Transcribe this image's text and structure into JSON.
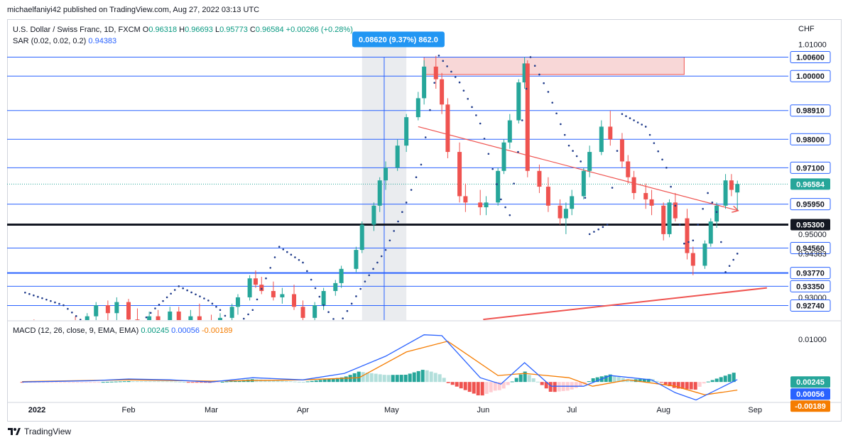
{
  "publisher": "michaelfaniyi42 published on TradingView.com, Aug 27, 2022 03:13 UTC",
  "footer_brand": "TradingView",
  "legend": {
    "symbol": "U.S. Dollar / Swiss Franc, 1D, FXCM",
    "o_label": "O",
    "o": "0.96318",
    "h_label": "H",
    "h": "0.96693",
    "l_label": "L",
    "l": "0.95773",
    "c_label": "C",
    "c": "0.96584",
    "change": "+0.00266 (+0.28%)",
    "sar_label": "SAR (0.02, 0.02, 0.2)",
    "sar_value": "0.94383",
    "macd_label": "MACD (12, 26, close, 9, EMA, EMA)",
    "macd_hist": "0.00245",
    "macd_line": "0.00056",
    "macd_signal": "-0.00189"
  },
  "currency": "CHF",
  "measure_label": "0.08620 (9.37%) 862.0",
  "colors": {
    "up": "#26a69a",
    "down": "#ef5350",
    "level_line": "#2962ff",
    "support_line": "#131722",
    "resistance_zone": "#f8d7d7",
    "sar": "#1e3a8a",
    "macd": "#2962ff",
    "signal": "#f57c00"
  },
  "price_axis": {
    "ticks": [
      "1.01000",
      "0.95000",
      "0.93000"
    ],
    "levels": [
      "1.00600",
      "1.00000",
      "0.98910",
      "0.98000",
      "0.97100",
      "0.95950",
      "0.94560",
      "0.93770",
      "0.93350",
      "0.92740"
    ],
    "support": "0.95300",
    "last_price": "0.96584",
    "sar_badge": "0.94383"
  },
  "macd_axis": {
    "tick": "0.01000",
    "hist_badge": "0.00245",
    "macd_badge": "0.00056",
    "signal_badge": "-0.00189"
  },
  "time_axis": [
    "2022",
    "Feb",
    "Mar",
    "Apr",
    "May",
    "Jun",
    "Jul",
    "Aug",
    "Sep"
  ],
  "chart_data": {
    "type": "candlestick",
    "title": "U.S. Dollar / Swiss Franc, 1D, FXCM",
    "y_unit": "CHF",
    "ylim": [
      0.9228,
      1.0106
    ],
    "horizontal_levels": [
      1.006,
      1.0,
      0.9891,
      0.98,
      0.971,
      0.9595,
      0.9456,
      0.9377,
      0.9335,
      0.9274
    ],
    "support_level": 0.953,
    "resistance_zone": {
      "from": "2022-05-12",
      "to": "2022-08-08",
      "low": 1.0005,
      "high": 1.006
    },
    "measure": {
      "from": "2022-04-21",
      "to": "2022-05-06",
      "change": 0.0862,
      "percent": 9.37,
      "ticks": 862.0
    },
    "trendlines": [
      {
        "from": [
          "2022-05-10",
          0.984
        ],
        "to": [
          "2022-08-26",
          0.9575
        ]
      },
      {
        "from": [
          "2022-06-01",
          0.923
        ],
        "to": [
          "2022-09-05",
          0.933
        ]
      }
    ],
    "candles": [
      [
        "2021-12-27",
        0.918,
        0.9215,
        0.9165,
        0.92
      ],
      [
        "2021-12-31",
        0.92,
        0.923,
        0.917,
        0.919
      ],
      [
        "2022-01-07",
        0.919,
        0.9225,
        0.916,
        0.921
      ],
      [
        "2022-01-14",
        0.921,
        0.924,
        0.915,
        0.9165
      ],
      [
        "2022-01-18",
        0.9165,
        0.925,
        0.916,
        0.924
      ],
      [
        "2022-01-21",
        0.924,
        0.9285,
        0.919,
        0.9275
      ],
      [
        "2022-01-25",
        0.9275,
        0.929,
        0.9225,
        0.925
      ],
      [
        "2022-01-28",
        0.925,
        0.93,
        0.9215,
        0.9285
      ],
      [
        "2022-02-01",
        0.9285,
        0.9295,
        0.92,
        0.923
      ],
      [
        "2022-02-04",
        0.923,
        0.9265,
        0.918,
        0.921
      ],
      [
        "2022-02-08",
        0.921,
        0.9255,
        0.9195,
        0.924
      ],
      [
        "2022-02-11",
        0.924,
        0.926,
        0.92,
        0.9215
      ],
      [
        "2022-02-15",
        0.9215,
        0.927,
        0.9205,
        0.9255
      ],
      [
        "2022-02-18",
        0.9255,
        0.927,
        0.9205,
        0.9225
      ],
      [
        "2022-02-22",
        0.9225,
        0.926,
        0.9195,
        0.924
      ],
      [
        "2022-02-25",
        0.924,
        0.928,
        0.9195,
        0.921
      ],
      [
        "2022-03-01",
        0.921,
        0.9245,
        0.915,
        0.918
      ],
      [
        "2022-03-04",
        0.918,
        0.925,
        0.9165,
        0.9235
      ],
      [
        "2022-03-08",
        0.9235,
        0.928,
        0.922,
        0.927
      ],
      [
        "2022-03-10",
        0.927,
        0.931,
        0.9245,
        0.93
      ],
      [
        "2022-03-14",
        0.93,
        0.937,
        0.929,
        0.936
      ],
      [
        "2022-03-16",
        0.936,
        0.9385,
        0.933,
        0.934
      ],
      [
        "2022-03-18",
        0.934,
        0.9365,
        0.931,
        0.932
      ],
      [
        "2022-03-22",
        0.932,
        0.935,
        0.929,
        0.93
      ],
      [
        "2022-03-25",
        0.93,
        0.933,
        0.928,
        0.931
      ],
      [
        "2022-03-29",
        0.931,
        0.934,
        0.926,
        0.927
      ],
      [
        "2022-04-01",
        0.927,
        0.929,
        0.9225,
        0.9235
      ],
      [
        "2022-04-05",
        0.9235,
        0.9285,
        0.9225,
        0.9275
      ],
      [
        "2022-04-08",
        0.9275,
        0.933,
        0.926,
        0.932
      ],
      [
        "2022-04-12",
        0.932,
        0.9355,
        0.9305,
        0.9345
      ],
      [
        "2022-04-14",
        0.9345,
        0.94,
        0.933,
        0.939
      ],
      [
        "2022-04-19",
        0.939,
        0.946,
        0.938,
        0.945
      ],
      [
        "2022-04-21",
        0.945,
        0.954,
        0.944,
        0.953
      ],
      [
        "2022-04-25",
        0.953,
        0.96,
        0.951,
        0.959
      ],
      [
        "2022-04-27",
        0.959,
        0.968,
        0.957,
        0.967
      ],
      [
        "2022-04-29",
        0.967,
        0.973,
        0.964,
        0.971
      ],
      [
        "2022-05-03",
        0.971,
        0.98,
        0.97,
        0.978
      ],
      [
        "2022-05-06",
        0.978,
        0.988,
        0.976,
        0.987
      ],
      [
        "2022-05-10",
        0.987,
        0.995,
        0.986,
        0.993
      ],
      [
        "2022-05-12",
        0.993,
        1.005,
        0.991,
        1.003
      ],
      [
        "2022-05-16",
        1.003,
        1.0064,
        0.996,
        0.999
      ],
      [
        "2022-05-18",
        0.999,
        1.001,
        0.988,
        0.991
      ],
      [
        "2022-05-20",
        0.991,
        0.993,
        0.974,
        0.976
      ],
      [
        "2022-05-24",
        0.976,
        0.979,
        0.96,
        0.962
      ],
      [
        "2022-05-26",
        0.962,
        0.966,
        0.957,
        0.96
      ],
      [
        "2022-05-31",
        0.96,
        0.964,
        0.956,
        0.9585
      ],
      [
        "2022-06-02",
        0.9585,
        0.962,
        0.956,
        0.96
      ],
      [
        "2022-06-06",
        0.96,
        0.971,
        0.959,
        0.97
      ],
      [
        "2022-06-08",
        0.97,
        0.98,
        0.969,
        0.979
      ],
      [
        "2022-06-10",
        0.979,
        0.988,
        0.977,
        0.986
      ],
      [
        "2022-06-13",
        0.986,
        0.999,
        0.985,
        0.998
      ],
      [
        "2022-06-15",
        0.998,
        1.006,
        0.996,
        1.004
      ],
      [
        "2022-06-16",
        1.004,
        1.005,
        0.968,
        0.97
      ],
      [
        "2022-06-20",
        0.97,
        0.972,
        0.963,
        0.965
      ],
      [
        "2022-06-23",
        0.965,
        0.968,
        0.957,
        0.959
      ],
      [
        "2022-06-27",
        0.959,
        0.961,
        0.953,
        0.955
      ],
      [
        "2022-06-29",
        0.955,
        0.96,
        0.95,
        0.958
      ],
      [
        "2022-07-01",
        0.958,
        0.964,
        0.956,
        0.962
      ],
      [
        "2022-07-05",
        0.962,
        0.971,
        0.961,
        0.97
      ],
      [
        "2022-07-07",
        0.97,
        0.978,
        0.968,
        0.976
      ],
      [
        "2022-07-11",
        0.976,
        0.986,
        0.975,
        0.984
      ],
      [
        "2022-07-14",
        0.984,
        0.989,
        0.978,
        0.98
      ],
      [
        "2022-07-18",
        0.98,
        0.982,
        0.971,
        0.973
      ],
      [
        "2022-07-20",
        0.973,
        0.975,
        0.966,
        0.968
      ],
      [
        "2022-07-22",
        0.968,
        0.97,
        0.961,
        0.963
      ],
      [
        "2022-07-26",
        0.963,
        0.966,
        0.958,
        0.961
      ],
      [
        "2022-07-28",
        0.961,
        0.964,
        0.956,
        0.959
      ],
      [
        "2022-08-01",
        0.959,
        0.96,
        0.948,
        0.95
      ],
      [
        "2022-08-03",
        0.95,
        0.961,
        0.949,
        0.96
      ],
      [
        "2022-08-05",
        0.96,
        0.963,
        0.954,
        0.955
      ],
      [
        "2022-08-09",
        0.955,
        0.958,
        0.942,
        0.944
      ],
      [
        "2022-08-11",
        0.944,
        0.946,
        0.937,
        0.94
      ],
      [
        "2022-08-15",
        0.94,
        0.948,
        0.939,
        0.947
      ],
      [
        "2022-08-17",
        0.947,
        0.955,
        0.946,
        0.954
      ],
      [
        "2022-08-19",
        0.954,
        0.96,
        0.952,
        0.959
      ],
      [
        "2022-08-22",
        0.959,
        0.969,
        0.958,
        0.967
      ],
      [
        "2022-08-24",
        0.967,
        0.969,
        0.962,
        0.964
      ],
      [
        "2022-08-26",
        0.96318,
        0.96693,
        0.95773,
        0.96584
      ]
    ],
    "sar": [
      [
        "2021-12-28",
        0.9315
      ],
      [
        "2022-01-10",
        0.9275
      ],
      [
        "2022-01-20",
        0.9195
      ],
      [
        "2022-02-01",
        0.918
      ],
      [
        "2022-02-10",
        0.9265
      ],
      [
        "2022-02-18",
        0.9335
      ],
      [
        "2022-02-28",
        0.929
      ],
      [
        "2022-03-04",
        0.926
      ],
      [
        "2022-03-09",
        0.9205
      ],
      [
        "2022-03-15",
        0.926
      ],
      [
        "2022-03-24",
        0.946
      ],
      [
        "2022-04-01",
        0.941
      ],
      [
        "2022-04-08",
        0.9275
      ],
      [
        "2022-04-13",
        0.921
      ],
      [
        "2022-04-22",
        0.935
      ],
      [
        "2022-04-29",
        0.945
      ],
      [
        "2022-05-06",
        0.96
      ],
      [
        "2022-05-11",
        0.972
      ],
      [
        "2022-05-17",
        1.0065
      ],
      [
        "2022-05-24",
        0.998
      ],
      [
        "2022-05-31",
        0.985
      ],
      [
        "2022-06-07",
        0.961
      ],
      [
        "2022-06-10",
        0.956
      ],
      [
        "2022-06-17",
        1.006
      ],
      [
        "2022-06-23",
        0.995
      ],
      [
        "2022-06-30",
        0.978
      ],
      [
        "2022-07-04",
        0.973
      ],
      [
        "2022-07-07",
        0.95
      ],
      [
        "2022-07-13",
        0.953
      ],
      [
        "2022-07-18",
        0.988
      ],
      [
        "2022-07-26",
        0.984
      ],
      [
        "2022-08-02",
        0.971
      ],
      [
        "2022-08-08",
        0.947
      ],
      [
        "2022-08-11",
        0.948
      ],
      [
        "2022-08-16",
        0.963
      ],
      [
        "2022-08-19",
        0.957
      ],
      [
        "2022-08-22",
        0.938
      ],
      [
        "2022-08-26",
        0.94383
      ]
    ],
    "macd": {
      "ylim": [
        -0.0046,
        0.0136
      ],
      "macd_line": [
        [
          "2021-12-27",
          0.0
        ],
        [
          "2022-01-20",
          0.0003
        ],
        [
          "2022-02-01",
          0.0007
        ],
        [
          "2022-02-15",
          0.0005
        ],
        [
          "2022-03-01",
          0.0
        ],
        [
          "2022-03-15",
          0.001
        ],
        [
          "2022-04-01",
          0.0005
        ],
        [
          "2022-04-15",
          0.002
        ],
        [
          "2022-04-29",
          0.006
        ],
        [
          "2022-05-12",
          0.011
        ],
        [
          "2022-05-18",
          0.0108
        ],
        [
          "2022-05-31",
          0.001
        ],
        [
          "2022-06-07",
          -0.0005
        ],
        [
          "2022-06-15",
          0.0045
        ],
        [
          "2022-06-24",
          -0.001
        ],
        [
          "2022-07-05",
          -0.001
        ],
        [
          "2022-07-14",
          0.0015
        ],
        [
          "2022-07-28",
          0.0005
        ],
        [
          "2022-08-05",
          -0.0025
        ],
        [
          "2022-08-12",
          -0.0042
        ],
        [
          "2022-08-26",
          0.00056
        ]
      ],
      "signal_line": [
        [
          "2021-12-27",
          0.0001
        ],
        [
          "2022-02-01",
          0.0005
        ],
        [
          "2022-03-01",
          0.0002
        ],
        [
          "2022-04-01",
          0.0005
        ],
        [
          "2022-04-20",
          0.001
        ],
        [
          "2022-05-06",
          0.007
        ],
        [
          "2022-05-20",
          0.0095
        ],
        [
          "2022-06-06",
          0.0015
        ],
        [
          "2022-06-15",
          0.002
        ],
        [
          "2022-06-30",
          0.001
        ],
        [
          "2022-07-08",
          -0.001
        ],
        [
          "2022-07-20",
          0.0005
        ],
        [
          "2022-08-05",
          -0.001
        ],
        [
          "2022-08-15",
          -0.003
        ],
        [
          "2022-08-26",
          -0.00189
        ]
      ],
      "histogram_last": 0.00245
    }
  }
}
